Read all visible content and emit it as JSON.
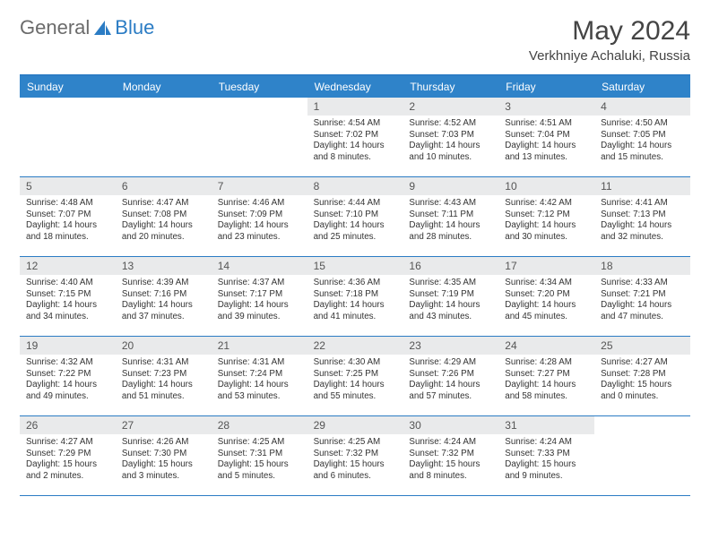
{
  "logo": {
    "text1": "General",
    "text2": "Blue"
  },
  "title": "May 2024",
  "location": "Verkhniye Achaluki, Russia",
  "colors": {
    "header_bg": "#2f83c9",
    "border": "#2b7cc4",
    "daynum_bg": "#e9eaeb",
    "text": "#333333"
  },
  "day_headers": [
    "Sunday",
    "Monday",
    "Tuesday",
    "Wednesday",
    "Thursday",
    "Friday",
    "Saturday"
  ],
  "weeks": [
    [
      {
        "blank": true
      },
      {
        "blank": true
      },
      {
        "blank": true
      },
      {
        "n": "1",
        "sunrise": "Sunrise: 4:54 AM",
        "sunset": "Sunset: 7:02 PM",
        "daylight": "Daylight: 14 hours and 8 minutes."
      },
      {
        "n": "2",
        "sunrise": "Sunrise: 4:52 AM",
        "sunset": "Sunset: 7:03 PM",
        "daylight": "Daylight: 14 hours and 10 minutes."
      },
      {
        "n": "3",
        "sunrise": "Sunrise: 4:51 AM",
        "sunset": "Sunset: 7:04 PM",
        "daylight": "Daylight: 14 hours and 13 minutes."
      },
      {
        "n": "4",
        "sunrise": "Sunrise: 4:50 AM",
        "sunset": "Sunset: 7:05 PM",
        "daylight": "Daylight: 14 hours and 15 minutes."
      }
    ],
    [
      {
        "n": "5",
        "sunrise": "Sunrise: 4:48 AM",
        "sunset": "Sunset: 7:07 PM",
        "daylight": "Daylight: 14 hours and 18 minutes."
      },
      {
        "n": "6",
        "sunrise": "Sunrise: 4:47 AM",
        "sunset": "Sunset: 7:08 PM",
        "daylight": "Daylight: 14 hours and 20 minutes."
      },
      {
        "n": "7",
        "sunrise": "Sunrise: 4:46 AM",
        "sunset": "Sunset: 7:09 PM",
        "daylight": "Daylight: 14 hours and 23 minutes."
      },
      {
        "n": "8",
        "sunrise": "Sunrise: 4:44 AM",
        "sunset": "Sunset: 7:10 PM",
        "daylight": "Daylight: 14 hours and 25 minutes."
      },
      {
        "n": "9",
        "sunrise": "Sunrise: 4:43 AM",
        "sunset": "Sunset: 7:11 PM",
        "daylight": "Daylight: 14 hours and 28 minutes."
      },
      {
        "n": "10",
        "sunrise": "Sunrise: 4:42 AM",
        "sunset": "Sunset: 7:12 PM",
        "daylight": "Daylight: 14 hours and 30 minutes."
      },
      {
        "n": "11",
        "sunrise": "Sunrise: 4:41 AM",
        "sunset": "Sunset: 7:13 PM",
        "daylight": "Daylight: 14 hours and 32 minutes."
      }
    ],
    [
      {
        "n": "12",
        "sunrise": "Sunrise: 4:40 AM",
        "sunset": "Sunset: 7:15 PM",
        "daylight": "Daylight: 14 hours and 34 minutes."
      },
      {
        "n": "13",
        "sunrise": "Sunrise: 4:39 AM",
        "sunset": "Sunset: 7:16 PM",
        "daylight": "Daylight: 14 hours and 37 minutes."
      },
      {
        "n": "14",
        "sunrise": "Sunrise: 4:37 AM",
        "sunset": "Sunset: 7:17 PM",
        "daylight": "Daylight: 14 hours and 39 minutes."
      },
      {
        "n": "15",
        "sunrise": "Sunrise: 4:36 AM",
        "sunset": "Sunset: 7:18 PM",
        "daylight": "Daylight: 14 hours and 41 minutes."
      },
      {
        "n": "16",
        "sunrise": "Sunrise: 4:35 AM",
        "sunset": "Sunset: 7:19 PM",
        "daylight": "Daylight: 14 hours and 43 minutes."
      },
      {
        "n": "17",
        "sunrise": "Sunrise: 4:34 AM",
        "sunset": "Sunset: 7:20 PM",
        "daylight": "Daylight: 14 hours and 45 minutes."
      },
      {
        "n": "18",
        "sunrise": "Sunrise: 4:33 AM",
        "sunset": "Sunset: 7:21 PM",
        "daylight": "Daylight: 14 hours and 47 minutes."
      }
    ],
    [
      {
        "n": "19",
        "sunrise": "Sunrise: 4:32 AM",
        "sunset": "Sunset: 7:22 PM",
        "daylight": "Daylight: 14 hours and 49 minutes."
      },
      {
        "n": "20",
        "sunrise": "Sunrise: 4:31 AM",
        "sunset": "Sunset: 7:23 PM",
        "daylight": "Daylight: 14 hours and 51 minutes."
      },
      {
        "n": "21",
        "sunrise": "Sunrise: 4:31 AM",
        "sunset": "Sunset: 7:24 PM",
        "daylight": "Daylight: 14 hours and 53 minutes."
      },
      {
        "n": "22",
        "sunrise": "Sunrise: 4:30 AM",
        "sunset": "Sunset: 7:25 PM",
        "daylight": "Daylight: 14 hours and 55 minutes."
      },
      {
        "n": "23",
        "sunrise": "Sunrise: 4:29 AM",
        "sunset": "Sunset: 7:26 PM",
        "daylight": "Daylight: 14 hours and 57 minutes."
      },
      {
        "n": "24",
        "sunrise": "Sunrise: 4:28 AM",
        "sunset": "Sunset: 7:27 PM",
        "daylight": "Daylight: 14 hours and 58 minutes."
      },
      {
        "n": "25",
        "sunrise": "Sunrise: 4:27 AM",
        "sunset": "Sunset: 7:28 PM",
        "daylight": "Daylight: 15 hours and 0 minutes."
      }
    ],
    [
      {
        "n": "26",
        "sunrise": "Sunrise: 4:27 AM",
        "sunset": "Sunset: 7:29 PM",
        "daylight": "Daylight: 15 hours and 2 minutes."
      },
      {
        "n": "27",
        "sunrise": "Sunrise: 4:26 AM",
        "sunset": "Sunset: 7:30 PM",
        "daylight": "Daylight: 15 hours and 3 minutes."
      },
      {
        "n": "28",
        "sunrise": "Sunrise: 4:25 AM",
        "sunset": "Sunset: 7:31 PM",
        "daylight": "Daylight: 15 hours and 5 minutes."
      },
      {
        "n": "29",
        "sunrise": "Sunrise: 4:25 AM",
        "sunset": "Sunset: 7:32 PM",
        "daylight": "Daylight: 15 hours and 6 minutes."
      },
      {
        "n": "30",
        "sunrise": "Sunrise: 4:24 AM",
        "sunset": "Sunset: 7:32 PM",
        "daylight": "Daylight: 15 hours and 8 minutes."
      },
      {
        "n": "31",
        "sunrise": "Sunrise: 4:24 AM",
        "sunset": "Sunset: 7:33 PM",
        "daylight": "Daylight: 15 hours and 9 minutes."
      },
      {
        "blank": true
      }
    ]
  ]
}
